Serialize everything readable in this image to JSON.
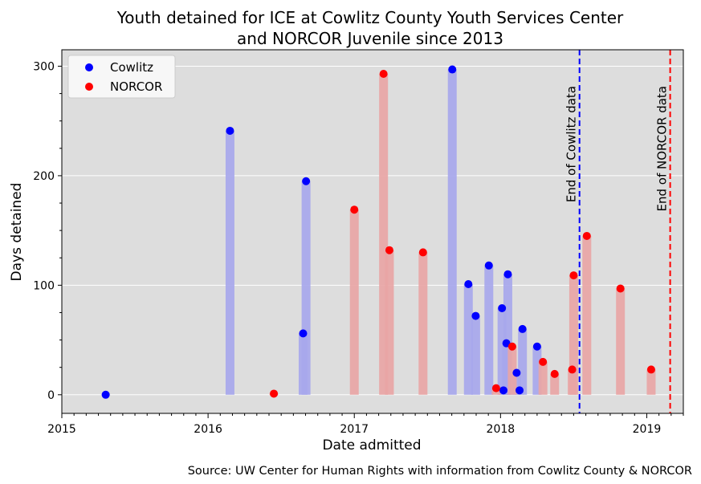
{
  "chart_data": {
    "type": "bar",
    "title_lines": [
      "Youth detained for ICE at Cowlitz County Youth Services Center",
      "and NORCOR Juvenile since 2013"
    ],
    "xlabel": "Date admitted",
    "ylabel": "Days detained",
    "source": "Source: UW Center for Human Rights with information from Cowlitz County & NORCOR",
    "xlim": [
      2015.0,
      2019.25
    ],
    "ylim": [
      -17,
      315
    ],
    "x_ticks": [
      2015,
      2016,
      2017,
      2018,
      2019
    ],
    "x_tick_labels": [
      "2015",
      "2016",
      "2017",
      "2018",
      "2019"
    ],
    "y_ticks": [
      0,
      100,
      200,
      300
    ],
    "y_tick_labels": [
      "0",
      "100",
      "200",
      "300"
    ],
    "grid": "horizontal",
    "legend_position": "top-left",
    "series": [
      {
        "name": "Cowlitz",
        "color": "#0000ff",
        "bar_color": "#a7a7ec",
        "points": [
          {
            "x": 2015.3,
            "y": 0
          },
          {
            "x": 2016.15,
            "y": 241
          },
          {
            "x": 2016.65,
            "y": 56
          },
          {
            "x": 2016.67,
            "y": 195
          },
          {
            "x": 2017.67,
            "y": 297
          },
          {
            "x": 2017.78,
            "y": 101
          },
          {
            "x": 2017.83,
            "y": 72
          },
          {
            "x": 2017.92,
            "y": 118
          },
          {
            "x": 2018.01,
            "y": 79
          },
          {
            "x": 2018.02,
            "y": 4
          },
          {
            "x": 2018.04,
            "y": 47
          },
          {
            "x": 2018.05,
            "y": 110
          },
          {
            "x": 2018.11,
            "y": 20
          },
          {
            "x": 2018.13,
            "y": 4
          },
          {
            "x": 2018.15,
            "y": 60
          },
          {
            "x": 2018.25,
            "y": 44
          }
        ]
      },
      {
        "name": "NORCOR",
        "color": "#ff0000",
        "bar_color": "#e8a5a5",
        "points": [
          {
            "x": 2016.45,
            "y": 1
          },
          {
            "x": 2017.0,
            "y": 169
          },
          {
            "x": 2017.2,
            "y": 293
          },
          {
            "x": 2017.24,
            "y": 132
          },
          {
            "x": 2017.47,
            "y": 130
          },
          {
            "x": 2017.97,
            "y": 6
          },
          {
            "x": 2018.08,
            "y": 44
          },
          {
            "x": 2018.29,
            "y": 30
          },
          {
            "x": 2018.37,
            "y": 19
          },
          {
            "x": 2018.49,
            "y": 23
          },
          {
            "x": 2018.5,
            "y": 109
          },
          {
            "x": 2018.59,
            "y": 145
          },
          {
            "x": 2018.82,
            "y": 97
          },
          {
            "x": 2019.03,
            "y": 23
          }
        ]
      }
    ],
    "reference_lines": [
      {
        "x": 2018.54,
        "label": "End of Cowlitz data",
        "color": "#0000ff"
      },
      {
        "x": 2019.16,
        "label": "End of NORCOR data",
        "color": "#ff0000"
      }
    ]
  }
}
